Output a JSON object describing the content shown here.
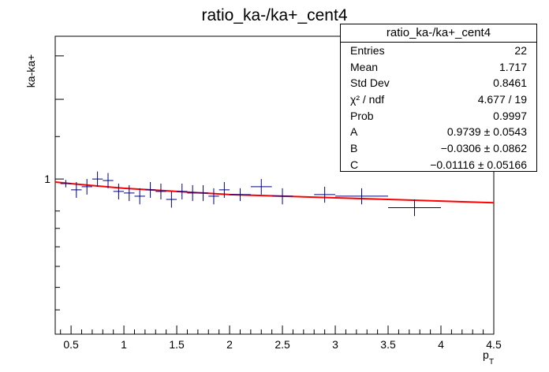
{
  "chart_data": {
    "type": "scatter",
    "title": "ratio_ka-/ka+_cent4",
    "xlabel": "p_T",
    "ylabel": "ka-ka+",
    "xlim": [
      0.35,
      4.5
    ],
    "ylim": [
      0.6,
      1.6
    ],
    "log_y": true,
    "x_ticks": [
      0.5,
      1,
      1.5,
      2,
      2.5,
      3,
      3.5,
      4,
      4.5
    ],
    "x_tick_labels": [
      "0.5",
      "1",
      "1.5",
      "2",
      "2.5",
      "3",
      "3.5",
      "4",
      "4.5"
    ],
    "y_tick_labels": [
      {
        "value": 1,
        "label": "1"
      }
    ],
    "grid": false,
    "series": [
      {
        "kind": "points",
        "color": "#000080",
        "points": [
          {
            "x": 0.45,
            "y": 0.985,
            "xerr": 0.05,
            "yerr": 0.012
          },
          {
            "x": 0.55,
            "y": 0.965,
            "xerr": 0.05,
            "yerr": 0.025
          },
          {
            "x": 0.65,
            "y": 0.975,
            "xerr": 0.05,
            "yerr": 0.025
          },
          {
            "x": 0.75,
            "y": 1.0,
            "xerr": 0.05,
            "yerr": 0.025
          },
          {
            "x": 0.85,
            "y": 0.995,
            "xerr": 0.05,
            "yerr": 0.025
          },
          {
            "x": 0.95,
            "y": 0.96,
            "xerr": 0.05,
            "yerr": 0.025
          },
          {
            "x": 1.05,
            "y": 0.955,
            "xerr": 0.05,
            "yerr": 0.025
          },
          {
            "x": 1.15,
            "y": 0.945,
            "xerr": 0.05,
            "yerr": 0.025
          },
          {
            "x": 1.25,
            "y": 0.965,
            "xerr": 0.05,
            "yerr": 0.025
          },
          {
            "x": 1.35,
            "y": 0.96,
            "xerr": 0.05,
            "yerr": 0.025
          },
          {
            "x": 1.45,
            "y": 0.935,
            "xerr": 0.05,
            "yerr": 0.025
          },
          {
            "x": 1.55,
            "y": 0.96,
            "xerr": 0.05,
            "yerr": 0.025
          },
          {
            "x": 1.65,
            "y": 0.955,
            "xerr": 0.05,
            "yerr": 0.025
          },
          {
            "x": 1.75,
            "y": 0.955,
            "xerr": 0.05,
            "yerr": 0.025
          },
          {
            "x": 1.85,
            "y": 0.945,
            "xerr": 0.05,
            "yerr": 0.025
          },
          {
            "x": 1.95,
            "y": 0.965,
            "xerr": 0.05,
            "yerr": 0.025
          },
          {
            "x": 2.1,
            "y": 0.95,
            "xerr": 0.1,
            "yerr": 0.02
          },
          {
            "x": 2.3,
            "y": 0.975,
            "xerr": 0.1,
            "yerr": 0.025
          },
          {
            "x": 2.5,
            "y": 0.945,
            "xerr": 0.1,
            "yerr": 0.025
          },
          {
            "x": 2.9,
            "y": 0.95,
            "xerr": 0.1,
            "yerr": 0.025
          },
          {
            "x": 3.25,
            "y": 0.945,
            "xerr": 0.25,
            "yerr": 0.025
          },
          {
            "x": 3.75,
            "y": 0.91,
            "xerr": 0.25,
            "yerr": 0.025
          }
        ]
      },
      {
        "kind": "fit",
        "color": "#ff0000",
        "x": [
          0.35,
          0.5,
          1.0,
          1.5,
          2.0,
          2.5,
          3.0,
          3.5,
          4.0,
          4.5
        ],
        "y": [
          0.99,
          0.985,
          0.97,
          0.96,
          0.95,
          0.945,
          0.94,
          0.935,
          0.93,
          0.925
        ]
      }
    ]
  },
  "stats": {
    "title": "ratio_ka-/ka+_cent4",
    "rows": [
      {
        "label": "Entries",
        "value": "22"
      },
      {
        "label": "Mean",
        "value": "1.717"
      },
      {
        "label": "Std Dev",
        "value": "0.8461"
      },
      {
        "label": "χ² / ndf",
        "value": "4.677 / 19"
      },
      {
        "label": "Prob",
        "value": "0.9997"
      },
      {
        "label": "A",
        "value": "0.9739 ± 0.0543"
      },
      {
        "label": "B",
        "value": "−0.0306 ± 0.0862"
      },
      {
        "label": "C",
        "value": "−0.01116 ± 0.05166"
      }
    ]
  }
}
